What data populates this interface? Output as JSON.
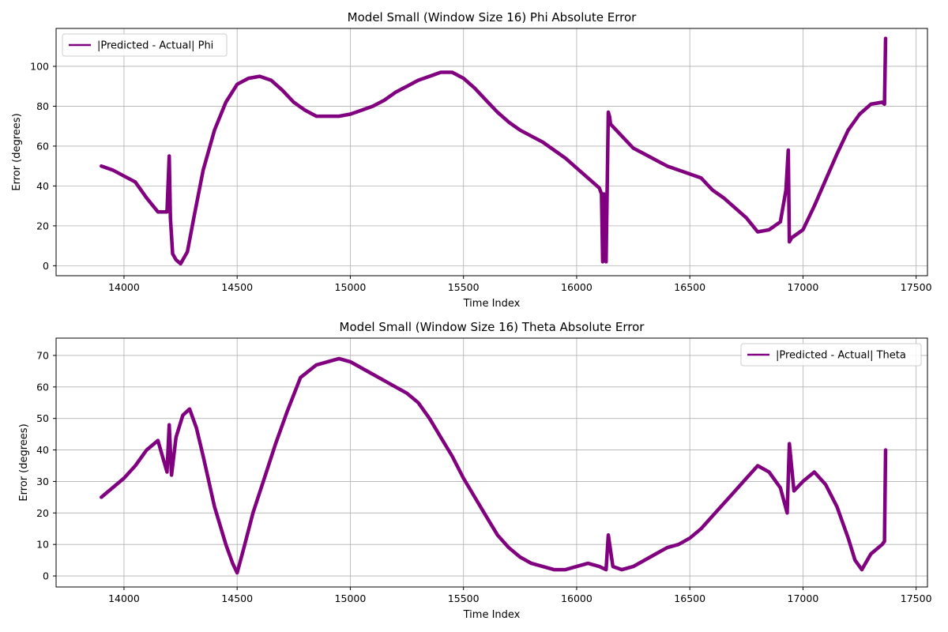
{
  "chart_data": [
    {
      "type": "line",
      "title": "Model Small (Window Size 16) Phi Absolute Error",
      "xlabel": "Time Index",
      "ylabel": "Error (degrees)",
      "xlim": [
        13700,
        17550
      ],
      "ylim": [
        -5,
        119
      ],
      "xticks": [
        14000,
        14500,
        15000,
        15500,
        16000,
        16500,
        17000,
        17500
      ],
      "yticks": [
        0,
        20,
        40,
        60,
        80,
        100
      ],
      "grid": true,
      "legend_position": "upper left",
      "series": [
        {
          "name": "|Predicted - Actual| Phi",
          "color": "#800080",
          "x": [
            13900,
            13950,
            14000,
            14050,
            14100,
            14150,
            14190,
            14200,
            14205,
            14215,
            14230,
            14250,
            14280,
            14310,
            14350,
            14400,
            14450,
            14500,
            14550,
            14600,
            14650,
            14700,
            14750,
            14800,
            14850,
            14900,
            14950,
            15000,
            15050,
            15100,
            15150,
            15200,
            15250,
            15300,
            15350,
            15400,
            15450,
            15500,
            15550,
            15600,
            15650,
            15700,
            15750,
            15800,
            15850,
            15900,
            15950,
            16000,
            16050,
            16100,
            16110,
            16115,
            16120,
            16130,
            16140,
            16145,
            16150,
            16200,
            16250,
            16300,
            16350,
            16400,
            16450,
            16500,
            16550,
            16600,
            16650,
            16700,
            16750,
            16800,
            16850,
            16900,
            16925,
            16935,
            16940,
            16950,
            17000,
            17050,
            17100,
            17150,
            17200,
            17250,
            17300,
            17350,
            17360,
            17365
          ],
          "values": [
            50,
            48,
            45,
            42,
            34,
            27,
            27,
            55,
            24,
            6,
            3,
            1,
            7,
            25,
            48,
            68,
            82,
            91,
            94,
            95,
            93,
            88,
            82,
            78,
            75,
            75,
            75,
            76,
            78,
            80,
            83,
            87,
            90,
            93,
            95,
            97,
            97,
            94,
            89,
            83,
            77,
            72,
            68,
            65,
            62,
            58,
            54,
            49,
            44,
            39,
            36,
            2,
            36,
            2,
            77,
            75,
            71,
            65,
            59,
            56,
            53,
            50,
            48,
            46,
            44,
            38,
            34,
            29,
            24,
            17,
            18,
            22,
            38,
            58,
            12,
            14,
            18,
            30,
            43,
            56,
            68,
            76,
            81,
            82,
            81,
            114
          ]
        }
      ]
    },
    {
      "type": "line",
      "title": "Model Small (Window Size 16) Theta Absolute Error",
      "xlabel": "Time Index",
      "ylabel": "Error (degrees)",
      "xlim": [
        13700,
        17550
      ],
      "ylim": [
        -3.5,
        75.5
      ],
      "xticks": [
        14000,
        14500,
        15000,
        15500,
        16000,
        16500,
        17000,
        17500
      ],
      "yticks": [
        0,
        10,
        20,
        30,
        40,
        50,
        60,
        70
      ],
      "grid": true,
      "legend_position": "upper right",
      "series": [
        {
          "name": "|Predicted - Actual| Theta",
          "color": "#800080",
          "x": [
            13900,
            13950,
            14000,
            14050,
            14100,
            14150,
            14190,
            14200,
            14210,
            14230,
            14260,
            14290,
            14320,
            14350,
            14400,
            14450,
            14480,
            14500,
            14530,
            14570,
            14620,
            14670,
            14720,
            14780,
            14850,
            14900,
            14950,
            15000,
            15050,
            15100,
            15150,
            15200,
            15250,
            15300,
            15350,
            15400,
            15450,
            15500,
            15550,
            15600,
            15650,
            15700,
            15750,
            15800,
            15850,
            15900,
            15950,
            16000,
            16050,
            16100,
            16130,
            16140,
            16160,
            16200,
            16250,
            16300,
            16350,
            16400,
            16450,
            16500,
            16550,
            16600,
            16650,
            16700,
            16750,
            16800,
            16850,
            16900,
            16930,
            16940,
            16960,
            17000,
            17050,
            17100,
            17150,
            17200,
            17230,
            17260,
            17300,
            17350,
            17360,
            17365
          ],
          "values": [
            25,
            28,
            31,
            35,
            40,
            43,
            33,
            48,
            32,
            44,
            51,
            53,
            47,
            38,
            22,
            10,
            4,
            1,
            9,
            20,
            31,
            42,
            52,
            63,
            67,
            68,
            69,
            68,
            66,
            64,
            62,
            60,
            58,
            55,
            50,
            44,
            38,
            31,
            25,
            19,
            13,
            9,
            6,
            4,
            3,
            2,
            2,
            3,
            4,
            3,
            2,
            13,
            3,
            2,
            3,
            5,
            7,
            9,
            10,
            12,
            15,
            19,
            23,
            27,
            31,
            35,
            33,
            28,
            20,
            42,
            27,
            30,
            33,
            29,
            22,
            12,
            5,
            2,
            7,
            10,
            11,
            40
          ]
        }
      ]
    }
  ]
}
